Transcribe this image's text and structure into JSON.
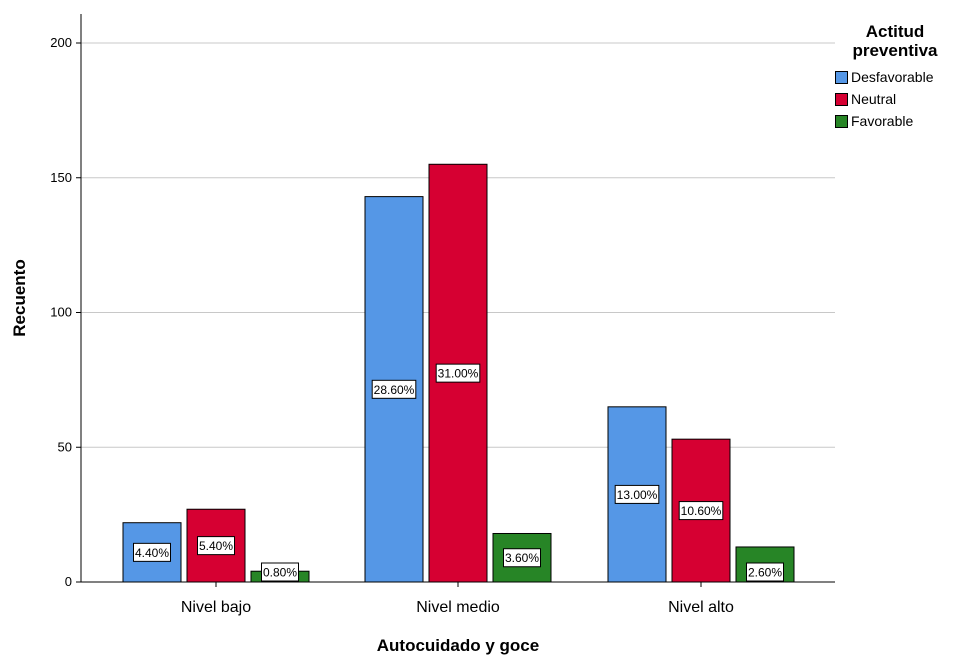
{
  "chart_data": {
    "type": "bar",
    "title": "",
    "xlabel": "Autocuidado y goce",
    "ylabel": "Recuento",
    "ylim": [
      0,
      210
    ],
    "yticks": [
      0,
      50,
      100,
      150,
      200
    ],
    "grid": true,
    "legend_position": "top-right",
    "legend_title": "Actitud preventiva",
    "categories": [
      "Nivel bajo",
      "Nivel medio",
      "Nivel alto"
    ],
    "series": [
      {
        "name": "Desfavorable",
        "color": "#5597e6",
        "values": [
          22,
          143,
          65
        ],
        "labels": [
          "4.40%",
          "28.60%",
          "13.00%"
        ]
      },
      {
        "name": "Neutral",
        "color": "#d60032",
        "values": [
          27,
          155,
          53
        ],
        "labels": [
          "5.40%",
          "31.00%",
          "10.60%"
        ]
      },
      {
        "name": "Favorable",
        "color": "#278526",
        "values": [
          4,
          18,
          13
        ],
        "labels": [
          "0.80%",
          "3.60%",
          "2.60%"
        ]
      }
    ]
  }
}
